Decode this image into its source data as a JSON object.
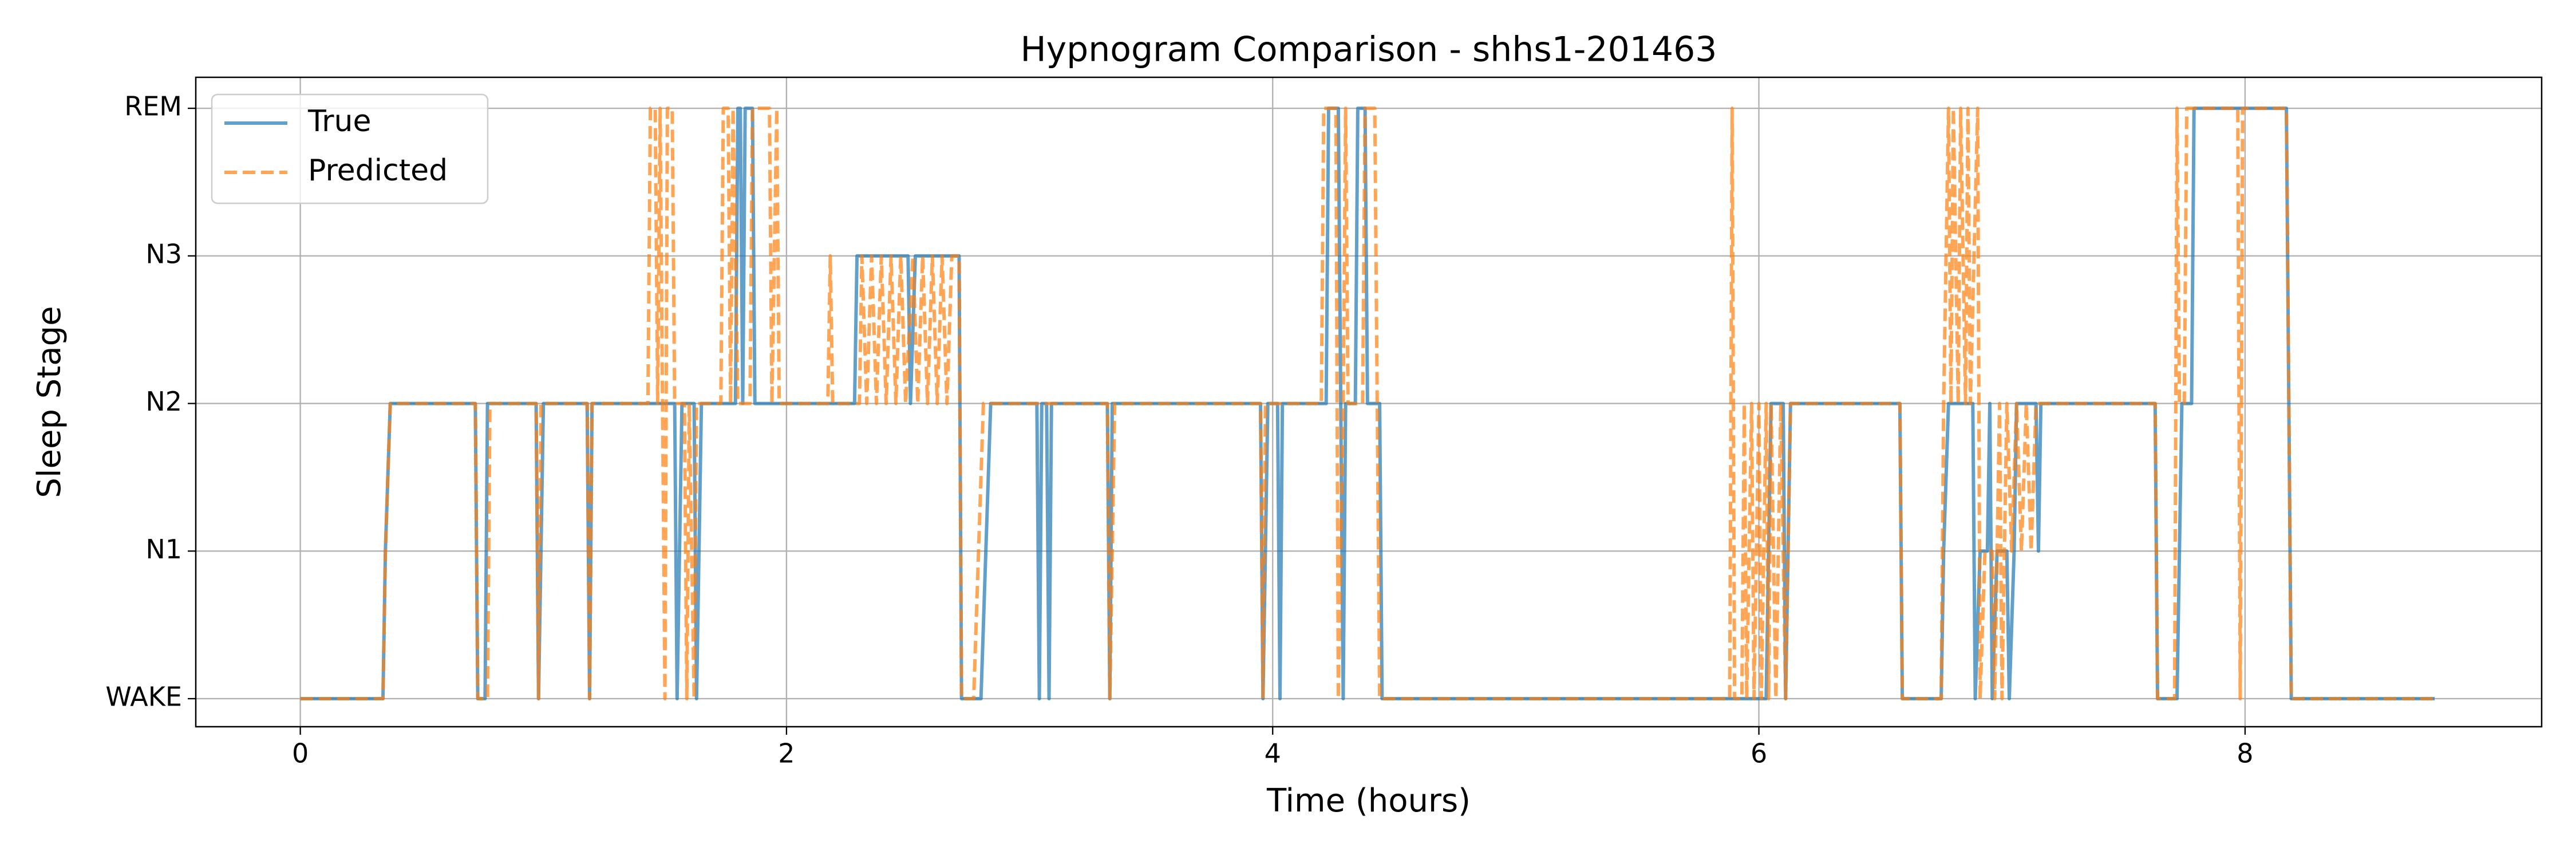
{
  "chart_data": {
    "type": "line",
    "title": "Hypnogram Comparison - shhs1-201463",
    "xlabel": "Time (hours)",
    "ylabel": "Sleep Stage",
    "xlim": [
      -0.43,
      9.22
    ],
    "ylim": [
      -0.19,
      4.21
    ],
    "xticks": [
      0,
      2,
      4,
      6,
      8
    ],
    "yticks": [
      {
        "value": 0,
        "label": "WAKE"
      },
      {
        "value": 1,
        "label": "N1"
      },
      {
        "value": 2,
        "label": "N2"
      },
      {
        "value": 3,
        "label": "N3"
      },
      {
        "value": 4,
        "label": "REM"
      }
    ],
    "grid": true,
    "legend": "upper left",
    "series": [
      {
        "name": "True",
        "color": "#1f77b4",
        "linestyle": "solid",
        "x": [
          0,
          0.34,
          0.35,
          0.37,
          0.72,
          0.73,
          0.76,
          0.77,
          0.97,
          0.98,
          1.0,
          1.18,
          1.19,
          1.2,
          1.54,
          1.55,
          1.57,
          1.62,
          1.63,
          1.65,
          1.79,
          1.8,
          1.81,
          1.82,
          1.83,
          1.86,
          1.87,
          2.28,
          2.29,
          2.5,
          2.51,
          2.53,
          2.71,
          2.72,
          2.8,
          2.82,
          2.84,
          3.03,
          3.04,
          3.05,
          3.07,
          3.08,
          3.09,
          3.32,
          3.33,
          3.34,
          3.95,
          3.96,
          3.98,
          4.02,
          4.03,
          4.04,
          4.22,
          4.23,
          4.27,
          4.28,
          4.29,
          4.3,
          4.34,
          4.35,
          4.38,
          4.39,
          4.44,
          4.45,
          6.03,
          6.05,
          6.1,
          6.11,
          6.13,
          6.58,
          6.59,
          6.75,
          6.76,
          6.78,
          6.88,
          6.89,
          6.91,
          6.94,
          6.95,
          6.96,
          6.98,
          7.02,
          7.03,
          7.05,
          7.06,
          7.14,
          7.15,
          7.16,
          7.63,
          7.64,
          7.72,
          7.73,
          7.74,
          7.78,
          7.79,
          8.17,
          8.19,
          8.78
        ],
        "values": [
          0,
          0,
          1,
          2,
          2,
          0,
          0,
          2,
          2,
          0,
          2,
          2,
          0,
          2,
          2,
          0,
          2,
          2,
          0,
          2,
          2,
          4,
          4,
          2,
          4,
          4,
          2,
          2,
          3,
          3,
          2,
          3,
          3,
          0,
          0,
          1,
          2,
          2,
          0,
          2,
          2,
          0,
          2,
          2,
          0,
          2,
          2,
          0,
          2,
          2,
          0,
          2,
          2,
          4,
          4,
          2,
          0,
          2,
          2,
          4,
          4,
          2,
          2,
          0,
          0,
          2,
          2,
          0,
          2,
          2,
          0,
          0,
          1,
          2,
          2,
          0,
          1,
          1,
          2,
          0,
          1,
          1,
          0,
          1,
          2,
          2,
          1,
          2,
          2,
          0,
          0,
          1,
          2,
          2,
          4,
          4,
          0,
          0
        ]
      },
      {
        "name": "Predicted",
        "color": "#ff7f0e",
        "linestyle": "dashed",
        "x": [
          0,
          0.34,
          0.35,
          0.37,
          0.72,
          0.73,
          0.77,
          0.78,
          0.97,
          0.98,
          0.99,
          1.18,
          1.19,
          1.2,
          1.43,
          1.44,
          1.46,
          1.47,
          1.48,
          1.5,
          1.51,
          1.53,
          1.54,
          1.58,
          1.59,
          1.6,
          1.62,
          1.63,
          1.73,
          1.74,
          1.76,
          1.77,
          1.78,
          1.8,
          1.85,
          1.86,
          1.93,
          1.94,
          1.96,
          1.97,
          2.17,
          2.18,
          2.19,
          2.3,
          2.31,
          2.33,
          2.35,
          2.37,
          2.39,
          2.41,
          2.43,
          2.45,
          2.47,
          2.49,
          2.52,
          2.54,
          2.56,
          2.58,
          2.6,
          2.62,
          2.64,
          2.66,
          2.68,
          2.71,
          2.72,
          2.77,
          2.79,
          2.81,
          3.32,
          3.33,
          3.35,
          3.95,
          3.96,
          3.97,
          4.2,
          4.21,
          4.26,
          4.27,
          4.29,
          4.3,
          4.31,
          4.37,
          4.38,
          4.42,
          4.43,
          4.44,
          5.88,
          5.89,
          5.9,
          5.93,
          5.94,
          5.95,
          5.97,
          5.98,
          6.0,
          6.01,
          6.03,
          6.04,
          6.05,
          6.07,
          6.09,
          6.11,
          6.13,
          6.58,
          6.59,
          6.75,
          6.76,
          6.78,
          6.79,
          6.8,
          6.82,
          6.83,
          6.85,
          6.86,
          6.87,
          6.9,
          6.91,
          6.93,
          6.96,
          6.97,
          6.99,
          7.0,
          7.02,
          7.04,
          7.06,
          7.08,
          7.1,
          7.12,
          7.14,
          7.63,
          7.64,
          7.71,
          7.72,
          7.73,
          7.75,
          7.76,
          7.97,
          7.98,
          7.99,
          8.17,
          8.19,
          8.78
        ],
        "values": [
          0,
          0,
          1,
          2,
          2,
          0,
          0,
          2,
          2,
          0,
          2,
          2,
          0,
          2,
          2,
          4,
          4,
          2,
          4,
          0,
          4,
          4,
          2,
          2,
          0,
          2,
          0,
          2,
          2,
          4,
          4,
          2,
          4,
          2,
          2,
          4,
          4,
          2,
          4,
          2,
          2,
          3,
          2,
          2,
          3,
          2,
          3,
          2,
          3,
          2,
          3,
          2,
          3,
          2,
          3,
          2,
          3,
          2,
          3,
          2,
          3,
          2,
          3,
          3,
          0,
          0,
          1,
          2,
          2,
          0,
          2,
          2,
          0,
          2,
          2,
          4,
          4,
          0,
          2,
          4,
          2,
          2,
          4,
          4,
          2,
          0,
          0,
          4,
          0,
          0,
          2,
          0,
          2,
          0,
          2,
          0,
          2,
          0,
          2,
          0,
          2,
          0,
          2,
          2,
          0,
          0,
          2,
          4,
          2,
          4,
          2,
          4,
          2,
          4,
          2,
          4,
          0,
          1,
          1,
          0,
          2,
          0,
          2,
          1,
          2,
          1,
          2,
          1,
          2,
          2,
          0,
          0,
          4,
          2,
          2,
          4,
          4,
          0,
          4,
          4,
          0,
          0
        ]
      }
    ]
  }
}
